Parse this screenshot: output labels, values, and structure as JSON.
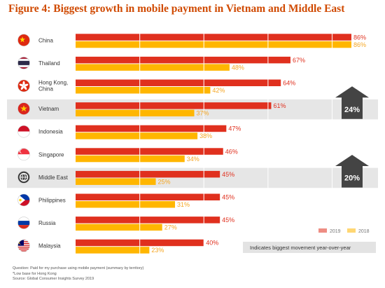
{
  "chart_data": {
    "type": "bar",
    "orientation": "horizontal",
    "title": "Figure 4: Biggest growth in mobile payment in Vietnam and Middle East",
    "categories": [
      "China",
      "Thailand",
      "Hong Kong, China",
      "Vietnam",
      "Indonesia",
      "Singapore",
      "Middle East",
      "Philippines",
      "Russia",
      "Malaysia"
    ],
    "series": [
      {
        "name": "2019",
        "values": [
          86,
          67,
          64,
          61,
          47,
          46,
          45,
          45,
          45,
          40
        ],
        "color": "#e0301e"
      },
      {
        "name": "2018",
        "values": [
          86,
          48,
          42,
          37,
          38,
          34,
          25,
          31,
          27,
          23
        ],
        "color": "#ffb600"
      }
    ],
    "value_labels_2019": [
      "86%",
      "67%",
      "64%",
      "61%",
      "47%",
      "46%",
      "45%",
      "45%",
      "45%",
      "40%"
    ],
    "value_labels_2018": [
      "86%",
      "48%",
      "42%",
      "37%",
      "38%",
      "34%",
      "25%",
      "31%",
      "27%",
      "23%"
    ],
    "xlim": [
      0,
      86
    ],
    "highlighted": [
      "Vietnam",
      "Middle East"
    ],
    "annotations": [
      {
        "category": "Vietnam",
        "label": "24%"
      },
      {
        "category": "Middle East",
        "label": "20%"
      }
    ],
    "legend_position": "bottom-right",
    "legend_note": "Indicates biggest movement year-over-year",
    "grid": true
  },
  "flags": [
    "china",
    "thailand",
    "hong-kong",
    "vietnam",
    "indonesia",
    "singapore",
    "middle-east",
    "philippines",
    "russia",
    "malaysia"
  ],
  "colors": {
    "title": "#d04a02",
    "value_2019": "#e0301e",
    "value_2018": "#f5a623",
    "highlight_band": "#e6e6e6",
    "arrow": "#444444"
  },
  "footnotes": {
    "question": "Question: Paid for my purchase using mobile payment (summary by territory)",
    "low_base": "*Low base for Hong Kong",
    "source": "Source: Global Consumer Insights Survey 2019"
  }
}
